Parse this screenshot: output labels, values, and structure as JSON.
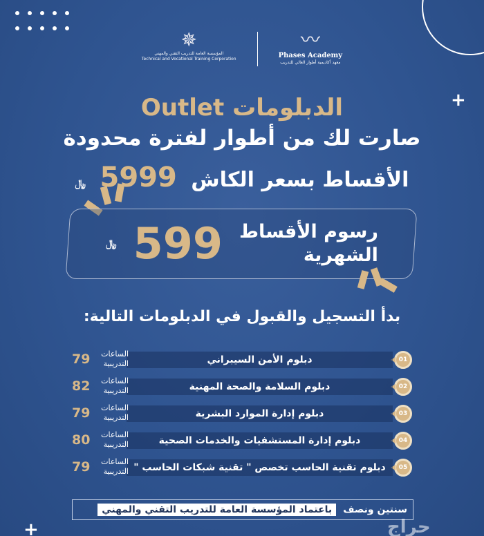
{
  "logos": {
    "tvtc_ar": "المؤسسة العامة للتدريب التقني والمهني",
    "tvtc_en": "Technical and Vocational Training Corporation",
    "phases_en": "Phases Academy",
    "phases_ar": "معهد أكاديمية أطوار العالي للتدريب"
  },
  "headline": {
    "title": "الدبلومات Outlet",
    "subtitle": "صارت لك من أطوار لفترة محدودة",
    "cash_label": "الأقساط بسعر الكاش",
    "cash_price": "5999",
    "currency": "﷼"
  },
  "monthly": {
    "label_line1": "رسوم الأقساط",
    "label_line2": "الشهرية",
    "price": "599",
    "currency": "﷼"
  },
  "diplomas_heading": "بدأ التسجيل والقبول في الدبلومات التالية:",
  "hours_label_line1": "الساعات",
  "hours_label_line2": "التدريبية",
  "diplomas": [
    {
      "num": "01",
      "name": "دبلوم الأمن السيبراني",
      "hours": "79"
    },
    {
      "num": "02",
      "name": "دبلوم السلامة والصحة المهنية",
      "hours": "82"
    },
    {
      "num": "03",
      "name": "دبلوم إدارة الموارد البشرية",
      "hours": "79"
    },
    {
      "num": "04",
      "name": "دبلوم إدارة المستشفيات والخدمات الصحية",
      "hours": "80"
    },
    {
      "num": "05",
      "name": "دبلوم تقنية الحاسب تخصص \" تقنية شبكات الحاسب \"",
      "hours": "79"
    }
  ],
  "footer": {
    "duration": "سنتين ونصف",
    "accreditation": "باعتماد المؤسسة العامة للتدريب التقني والمهني"
  },
  "watermark": "حراج",
  "colors": {
    "background": "#2f5490",
    "accent_gold": "#d8b888"
  }
}
